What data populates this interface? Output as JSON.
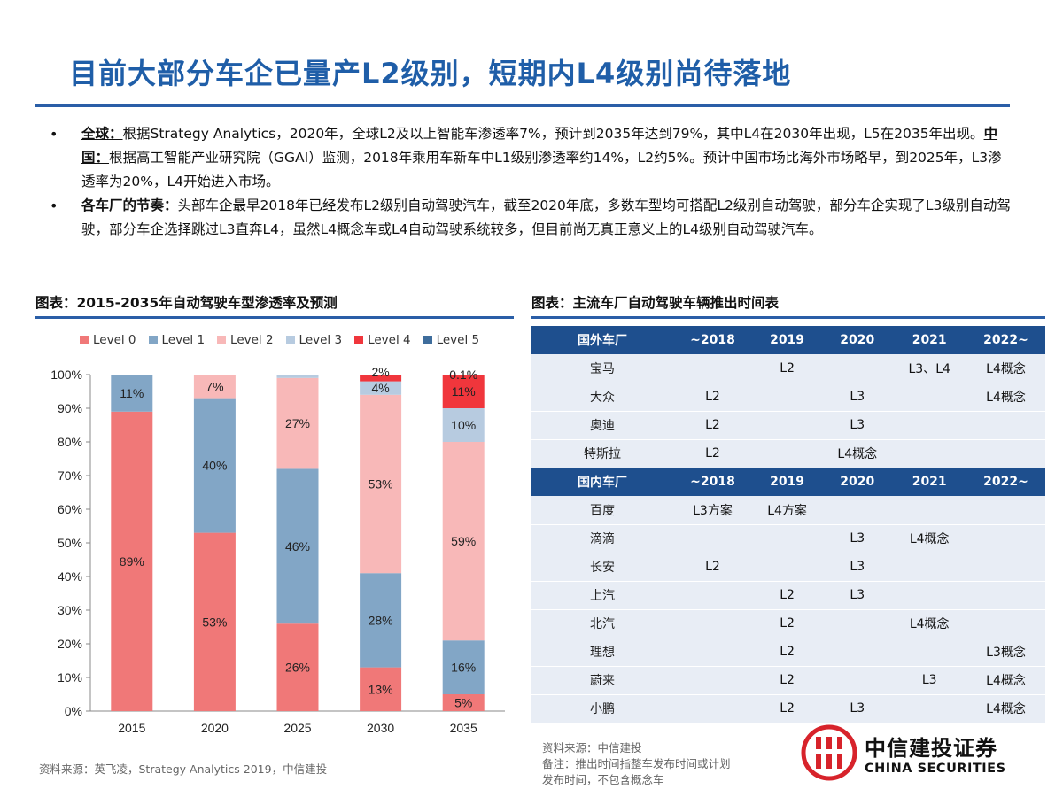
{
  "title": "目前大部分车企已量产L2级别，短期内L4级别尚待落地",
  "bullets": [
    {
      "head": "全球：",
      "text1": "根据Strategy Analytics，2020年，全球L2及以上智能车渗透率7%，预计到2035年达到79%，其中L4在2030年出现，L5在2035年出现。",
      "head2": "中国：",
      "text2": "根据高工智能产业研究院（GGAI）监测，2018年乘用车新车中L1级别渗透率约14%，L2约5%。预计中国市场比海外市场略早，到2025年，L3渗透率为20%，L4开始进入市场。"
    },
    {
      "head": "各车厂的节奏：",
      "text1": "头部车企最早2018年已经发布L2级别自动驾驶汽车，截至2020年底，多数车型均可搭配L2级别自动驾驶，部分车企实现了L3级别自动驾驶，部分车企选择跳过L3直奔L4，虽然L4概念车或L4自动驾驶系统较多，但目前尚无真正意义上的L4级别自动驾驶汽车。"
    }
  ],
  "left_section_title": "图表：2015-2035年自动驾驶车型渗透率及预测",
  "right_section_title": "图表：主流车厂自动驾驶车辆推出时间表",
  "chart_data": {
    "type": "bar",
    "stacked": true,
    "categories": [
      "2015",
      "2020",
      "2025",
      "2030",
      "2035"
    ],
    "ylim": [
      0,
      100
    ],
    "yticks": [
      "0%",
      "10%",
      "20%",
      "30%",
      "40%",
      "50%",
      "60%",
      "70%",
      "80%",
      "90%",
      "100%"
    ],
    "legend_position": "top",
    "series": [
      {
        "name": "Level 0",
        "color": "#f07878",
        "values": [
          89,
          53,
          26,
          13,
          5
        ],
        "labels": [
          "89%",
          "53%",
          "26%",
          "13%",
          "5%"
        ]
      },
      {
        "name": "Level 1",
        "color": "#82a6c6",
        "values": [
          11,
          40,
          46,
          28,
          16
        ],
        "labels": [
          "11%",
          "40%",
          "46%",
          "28%",
          "16%"
        ]
      },
      {
        "name": "Level 2",
        "color": "#f8b8b8",
        "values": [
          0,
          7,
          27,
          53,
          59
        ],
        "labels": [
          "",
          "7%",
          "27%",
          "53%",
          "59%"
        ]
      },
      {
        "name": "Level 3",
        "color": "#b7cbe0",
        "values": [
          0,
          0,
          1,
          4,
          10
        ],
        "labels": [
          "",
          "",
          "",
          "4%",
          "10%"
        ]
      },
      {
        "name": "Level 4",
        "color": "#f0363c",
        "values": [
          0,
          0,
          0,
          2,
          11
        ],
        "labels": [
          "",
          "",
          "",
          "2%",
          "11%"
        ]
      },
      {
        "name": "Level 5",
        "color": "#3e6d9c",
        "values": [
          0,
          0,
          0,
          0,
          0.1
        ],
        "labels": [
          "",
          "",
          "",
          "",
          "0.1%"
        ]
      }
    ]
  },
  "left_source": "资料来源：英飞凌，Strategy Analytics 2019，中信建投",
  "schedule": {
    "columns": [
      "~2018",
      "2019",
      "2020",
      "2021",
      "2022~"
    ],
    "foreign_header": "国外车厂",
    "foreign_rows": [
      {
        "name": "宝马",
        "cells": [
          "",
          "L2",
          "",
          "L3、L4",
          "L4概念"
        ]
      },
      {
        "name": "大众",
        "cells": [
          "L2",
          "",
          "L3",
          "",
          "L4概念"
        ]
      },
      {
        "name": "奥迪",
        "cells": [
          "L2",
          "",
          "L3",
          "",
          ""
        ]
      },
      {
        "name": "特斯拉",
        "cells": [
          "L2",
          "",
          "L4概念",
          "",
          ""
        ]
      }
    ],
    "domestic_header": "国内车厂",
    "domestic_rows": [
      {
        "name": "百度",
        "cells": [
          "L3方案",
          "L4方案",
          "",
          "",
          ""
        ]
      },
      {
        "name": "滴滴",
        "cells": [
          "",
          "",
          "L3",
          "L4概念",
          ""
        ]
      },
      {
        "name": "长安",
        "cells": [
          "L2",
          "",
          "L3",
          "",
          ""
        ]
      },
      {
        "name": "上汽",
        "cells": [
          "",
          "L2",
          "L3",
          "",
          ""
        ]
      },
      {
        "name": "北汽",
        "cells": [
          "",
          "L2",
          "",
          "L4概念",
          ""
        ]
      },
      {
        "name": "理想",
        "cells": [
          "",
          "L2",
          "",
          "",
          "L3概念"
        ]
      },
      {
        "name": "蔚来",
        "cells": [
          "",
          "L2",
          "",
          "L3",
          "L4概念"
        ]
      },
      {
        "name": "小鹏",
        "cells": [
          "",
          "L2",
          "L3",
          "",
          "L4概念"
        ]
      }
    ]
  },
  "right_source": "资料来源：中信建投",
  "right_note_line1": "备注：推出时间指整车发布时间或计划",
  "right_note_line2": "发布时间，不包含概念车",
  "logo": {
    "cn": "中信建投证券",
    "en": "CHINA SECURITIES",
    "icon": "citic-logo-icon",
    "color": "#d7232b"
  }
}
